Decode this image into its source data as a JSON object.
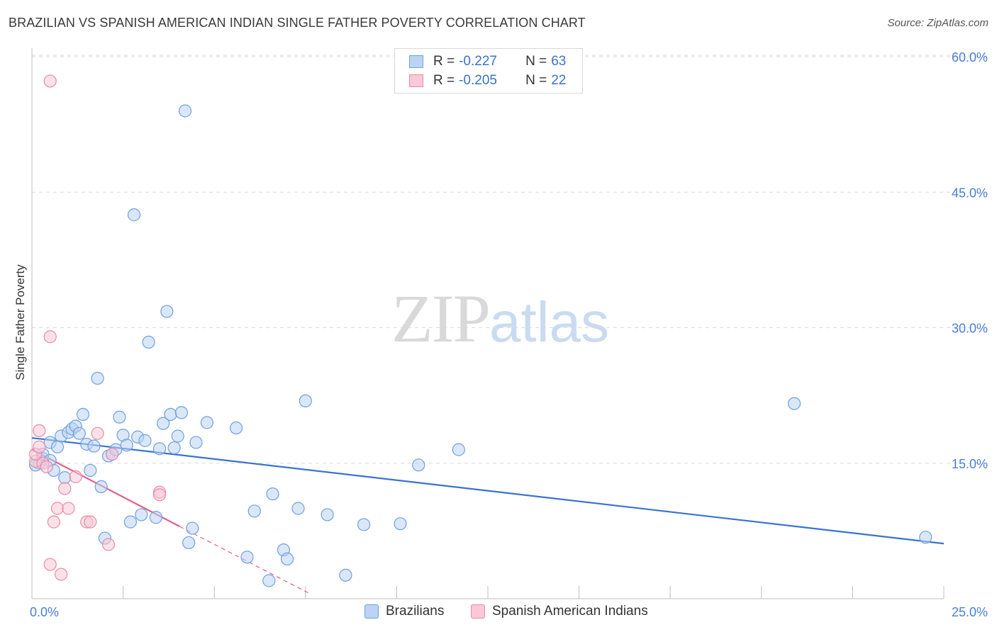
{
  "title": "BRAZILIAN VS SPANISH AMERICAN INDIAN SINGLE FATHER POVERTY CORRELATION CHART",
  "source": "Source: ZipAtlas.com",
  "watermark": {
    "zip": "ZIP",
    "atlas": "atlas"
  },
  "legend": {
    "r_label": "R =",
    "n_label": "N =",
    "entries": [
      {
        "r": "-0.227",
        "n": "63",
        "color": "#6fa0e0",
        "fill": "#bcd3f3"
      },
      {
        "r": "-0.205",
        "n": "22",
        "color": "#e88aa5",
        "fill": "#f9c9d7"
      }
    ]
  },
  "bottom_legend": [
    "Brazilians",
    "Spanish American Indians"
  ],
  "colors": {
    "blue": "#3a72d0",
    "blue_fill": "#bcd3f3",
    "pink": "#e0608a",
    "pink_fill": "#f9c9d7",
    "grid": "#d9d9d9",
    "tick_text": "#4a7fd0"
  },
  "chart_data": {
    "type": "scatter",
    "title": "BRAZILIAN VS SPANISH AMERICAN INDIAN SINGLE FATHER POVERTY CORRELATION CHART",
    "xlabel": "",
    "ylabel": "Single Father Poverty",
    "xlim": [
      0,
      25
    ],
    "ylim": [
      0,
      60
    ],
    "x_tick_labels": [
      "0.0%",
      "25.0%"
    ],
    "y_tick_values": [
      15,
      30,
      45,
      60
    ],
    "y_tick_labels": [
      "15.0%",
      "30.0%",
      "45.0%",
      "60.0%"
    ],
    "series": [
      {
        "name": "Brazilians",
        "points": [
          [
            0.2,
            15.0
          ],
          [
            0.3,
            15.5
          ],
          [
            0.3,
            16.0
          ],
          [
            0.5,
            15.3
          ],
          [
            0.5,
            17.3
          ],
          [
            0.6,
            14.2
          ],
          [
            0.7,
            16.8
          ],
          [
            0.8,
            18.0
          ],
          [
            0.9,
            13.4
          ],
          [
            1.0,
            18.4
          ],
          [
            1.1,
            18.8
          ],
          [
            1.2,
            19.1
          ],
          [
            1.3,
            18.3
          ],
          [
            1.4,
            20.4
          ],
          [
            1.5,
            17.1
          ],
          [
            1.6,
            14.2
          ],
          [
            1.7,
            16.9
          ],
          [
            1.8,
            24.4
          ],
          [
            1.9,
            12.4
          ],
          [
            2.0,
            6.7
          ],
          [
            2.1,
            15.8
          ],
          [
            2.2,
            16.0
          ],
          [
            2.3,
            16.5
          ],
          [
            2.4,
            20.1
          ],
          [
            2.5,
            18.1
          ],
          [
            2.6,
            17.0
          ],
          [
            2.7,
            8.5
          ],
          [
            2.8,
            42.5
          ],
          [
            2.9,
            17.9
          ],
          [
            3.0,
            9.3
          ],
          [
            3.1,
            17.5
          ],
          [
            3.2,
            28.4
          ],
          [
            3.4,
            9.0
          ],
          [
            3.5,
            16.6
          ],
          [
            3.6,
            19.4
          ],
          [
            3.7,
            31.8
          ],
          [
            3.8,
            20.4
          ],
          [
            3.9,
            16.7
          ],
          [
            4.0,
            18.0
          ],
          [
            4.1,
            20.6
          ],
          [
            4.2,
            54.0
          ],
          [
            4.3,
            6.2
          ],
          [
            4.4,
            7.8
          ],
          [
            4.5,
            17.3
          ],
          [
            4.8,
            19.5
          ],
          [
            5.6,
            18.9
          ],
          [
            5.9,
            4.6
          ],
          [
            6.1,
            9.7
          ],
          [
            6.5,
            2.0
          ],
          [
            6.6,
            11.6
          ],
          [
            6.9,
            5.4
          ],
          [
            7.0,
            4.4
          ],
          [
            7.3,
            10.0
          ],
          [
            7.5,
            21.9
          ],
          [
            8.1,
            9.3
          ],
          [
            8.6,
            2.6
          ],
          [
            9.1,
            8.2
          ],
          [
            10.1,
            8.3
          ],
          [
            10.6,
            14.8
          ],
          [
            11.7,
            16.5
          ],
          [
            20.9,
            21.6
          ],
          [
            24.5,
            6.8
          ],
          [
            0.1,
            14.8
          ]
        ]
      },
      {
        "name": "Spanish American Indians",
        "points": [
          [
            0.1,
            15.2
          ],
          [
            0.1,
            16.0
          ],
          [
            0.2,
            18.6
          ],
          [
            0.2,
            16.8
          ],
          [
            0.3,
            15.0
          ],
          [
            0.4,
            14.6
          ],
          [
            0.5,
            57.3
          ],
          [
            0.5,
            29.0
          ],
          [
            0.5,
            3.8
          ],
          [
            0.6,
            8.5
          ],
          [
            0.7,
            10.0
          ],
          [
            0.8,
            2.7
          ],
          [
            0.9,
            12.2
          ],
          [
            1.0,
            10.0
          ],
          [
            1.2,
            13.5
          ],
          [
            1.5,
            8.5
          ],
          [
            1.6,
            8.5
          ],
          [
            1.8,
            18.3
          ],
          [
            2.1,
            6.0
          ],
          [
            2.2,
            16.0
          ],
          [
            3.5,
            11.8
          ],
          [
            3.5,
            11.5
          ]
        ]
      }
    ],
    "trendlines": [
      {
        "name": "Brazilians",
        "x": [
          0,
          25
        ],
        "y": [
          17.8,
          6.1
        ],
        "style": "solid"
      },
      {
        "name": "Spanish American Indians",
        "x": [
          0,
          4.05
        ],
        "y": [
          16.5,
          8.0
        ],
        "style": "solid"
      },
      {
        "name": "Spanish American Indians",
        "x": [
          4.05,
          7.6
        ],
        "y": [
          8.0,
          0.6
        ],
        "style": "dashed"
      }
    ]
  }
}
